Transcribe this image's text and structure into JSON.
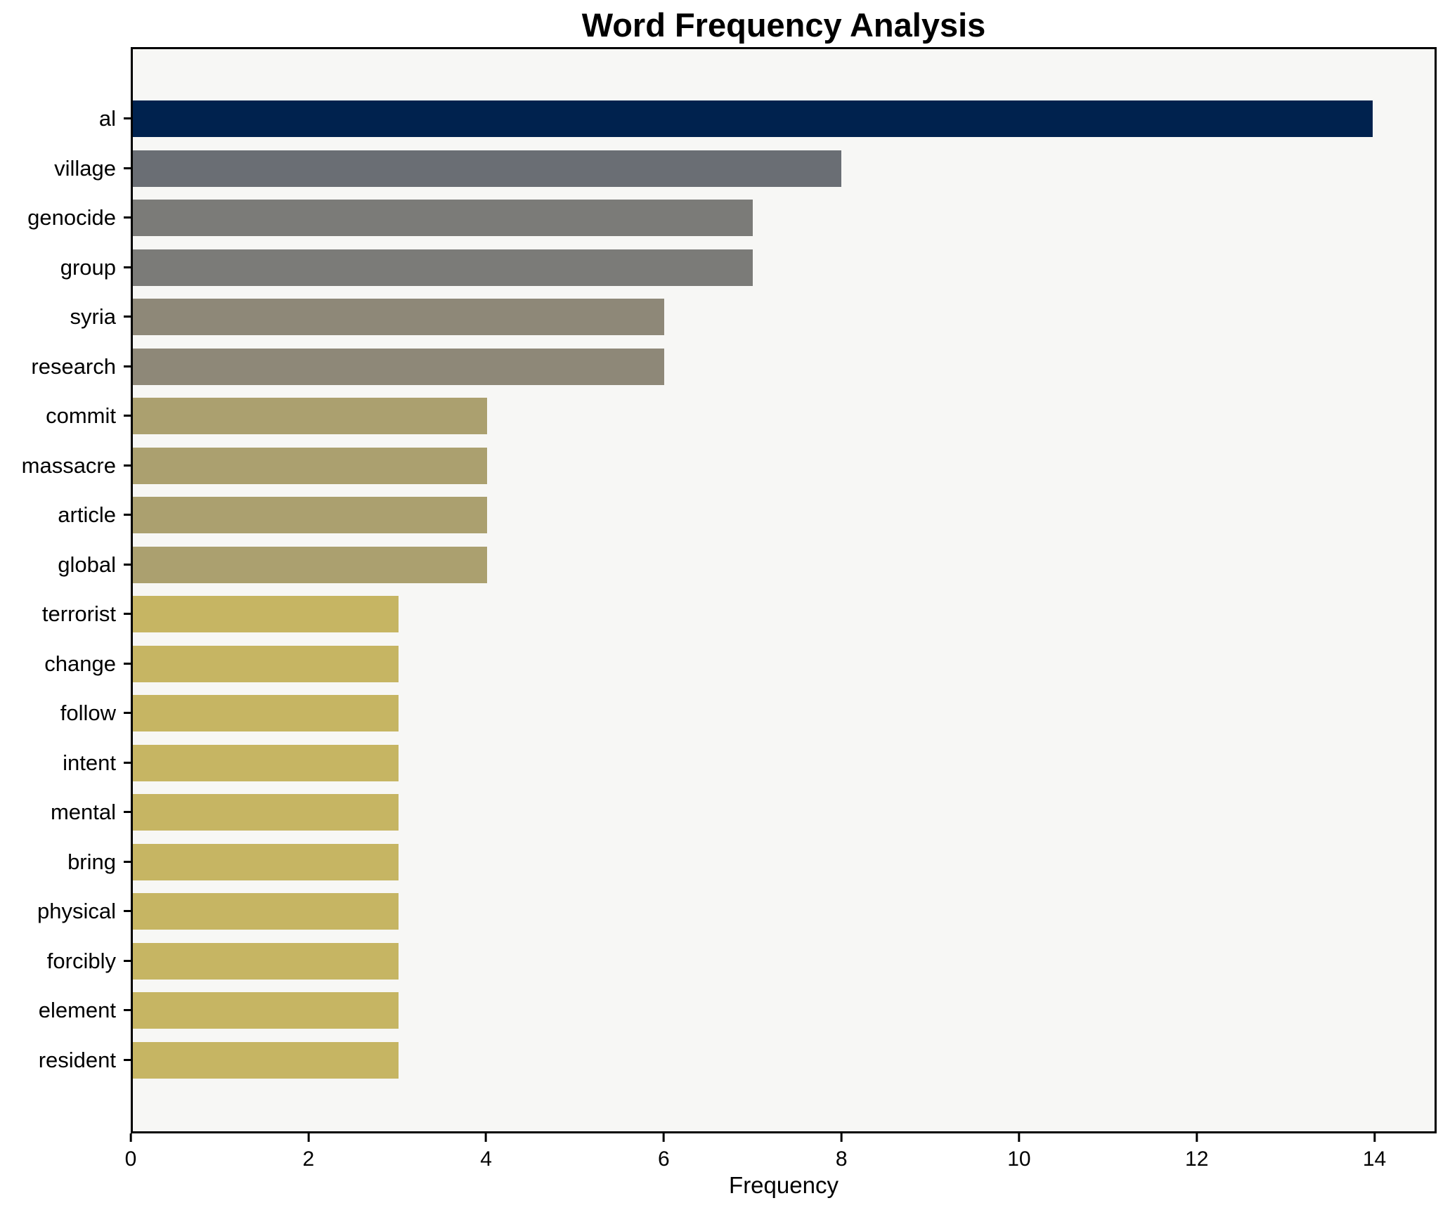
{
  "figure": {
    "background": "#ffffff",
    "plot_background": "#f7f7f5",
    "axis_color": "#000000"
  },
  "chart_data": {
    "type": "bar",
    "orientation": "horizontal",
    "title": "Word Frequency Analysis",
    "xlabel": "Frequency",
    "ylabel": "",
    "categories": [
      "al",
      "village",
      "genocide",
      "group",
      "syria",
      "research",
      "commit",
      "massacre",
      "article",
      "global",
      "terrorist",
      "change",
      "follow",
      "intent",
      "mental",
      "bring",
      "physical",
      "forcibly",
      "element",
      "resident"
    ],
    "values": [
      14,
      8,
      7,
      7,
      6,
      6,
      4,
      4,
      4,
      4,
      3,
      3,
      3,
      3,
      3,
      3,
      3,
      3,
      3,
      3
    ],
    "bar_colors": [
      "#00224e",
      "#6a6e74",
      "#7b7b78",
      "#7b7b78",
      "#8e8878",
      "#8e8878",
      "#aba06f",
      "#aba06f",
      "#aba06f",
      "#aba06f",
      "#c6b563",
      "#c6b563",
      "#c6b563",
      "#c6b563",
      "#c6b563",
      "#c6b563",
      "#c6b563",
      "#c6b563",
      "#c6b563",
      "#c6b563"
    ],
    "xlim": [
      0,
      14.7
    ],
    "xticks": [
      0,
      2,
      4,
      6,
      8,
      10,
      12,
      14
    ],
    "grid": false,
    "legend": null
  }
}
